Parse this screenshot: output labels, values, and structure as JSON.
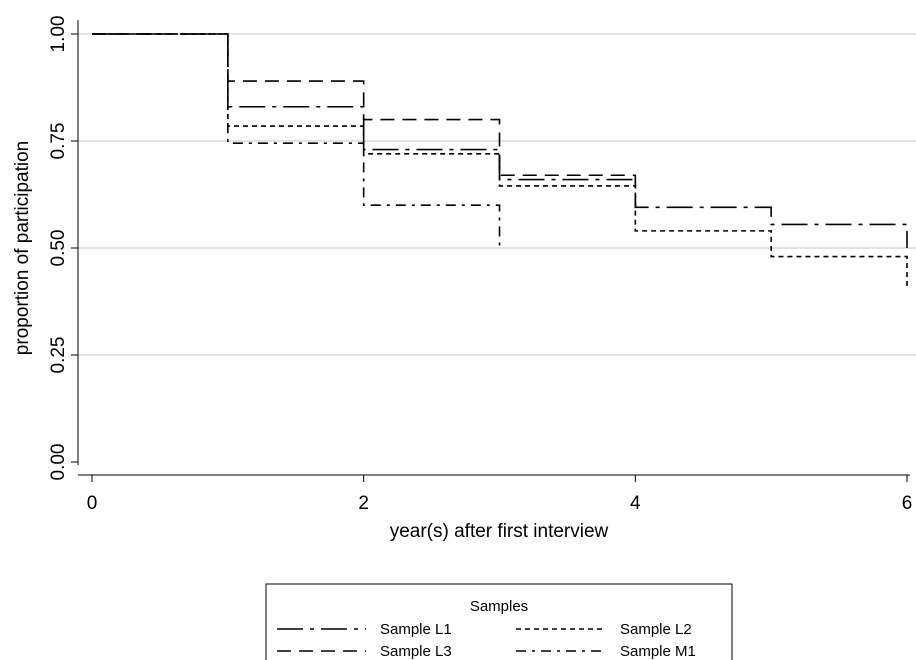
{
  "chart_data": {
    "type": "line",
    "step": true,
    "xlabel": "year(s) after first interview",
    "ylabel": "proportion of participation",
    "xlim": [
      0,
      6
    ],
    "ylim": [
      0,
      1
    ],
    "xticks": [
      {
        "value": 0,
        "label": "0"
      },
      {
        "value": 2,
        "label": "2"
      },
      {
        "value": 4,
        "label": "4"
      },
      {
        "value": 6,
        "label": "6"
      }
    ],
    "yticks": [
      {
        "value": 0,
        "label": "0.00"
      },
      {
        "value": 0.25,
        "label": "0.25"
      },
      {
        "value": 0.5,
        "label": "0.50"
      },
      {
        "value": 0.75,
        "label": "0.75"
      },
      {
        "value": 1,
        "label": "1.00"
      }
    ],
    "grid": true,
    "legend": {
      "title": "Samples",
      "placement": "bottom",
      "columns": 2
    },
    "series": [
      {
        "name": "Sample L1",
        "dash": "long-dash-dot",
        "x": [
          0,
          1,
          2,
          3,
          4,
          5,
          6
        ],
        "y": [
          1.0,
          0.83,
          0.73,
          0.66,
          0.595,
          0.555,
          0.5
        ]
      },
      {
        "name": "Sample L2",
        "dash": "short-dash",
        "x": [
          0,
          1,
          2,
          3,
          4,
          5,
          6
        ],
        "y": [
          1.0,
          0.785,
          0.72,
          0.645,
          0.54,
          0.48,
          0.405
        ]
      },
      {
        "name": "Sample L3",
        "dash": "dash",
        "x": [
          0,
          1,
          2,
          3,
          4
        ],
        "y": [
          1.0,
          0.89,
          0.8,
          0.67,
          0.595
        ]
      },
      {
        "name": "Sample M1",
        "dash": "dash-dot",
        "x": [
          0,
          1,
          2,
          3
        ],
        "y": [
          1.0,
          0.745,
          0.6,
          0.495
        ]
      }
    ]
  }
}
